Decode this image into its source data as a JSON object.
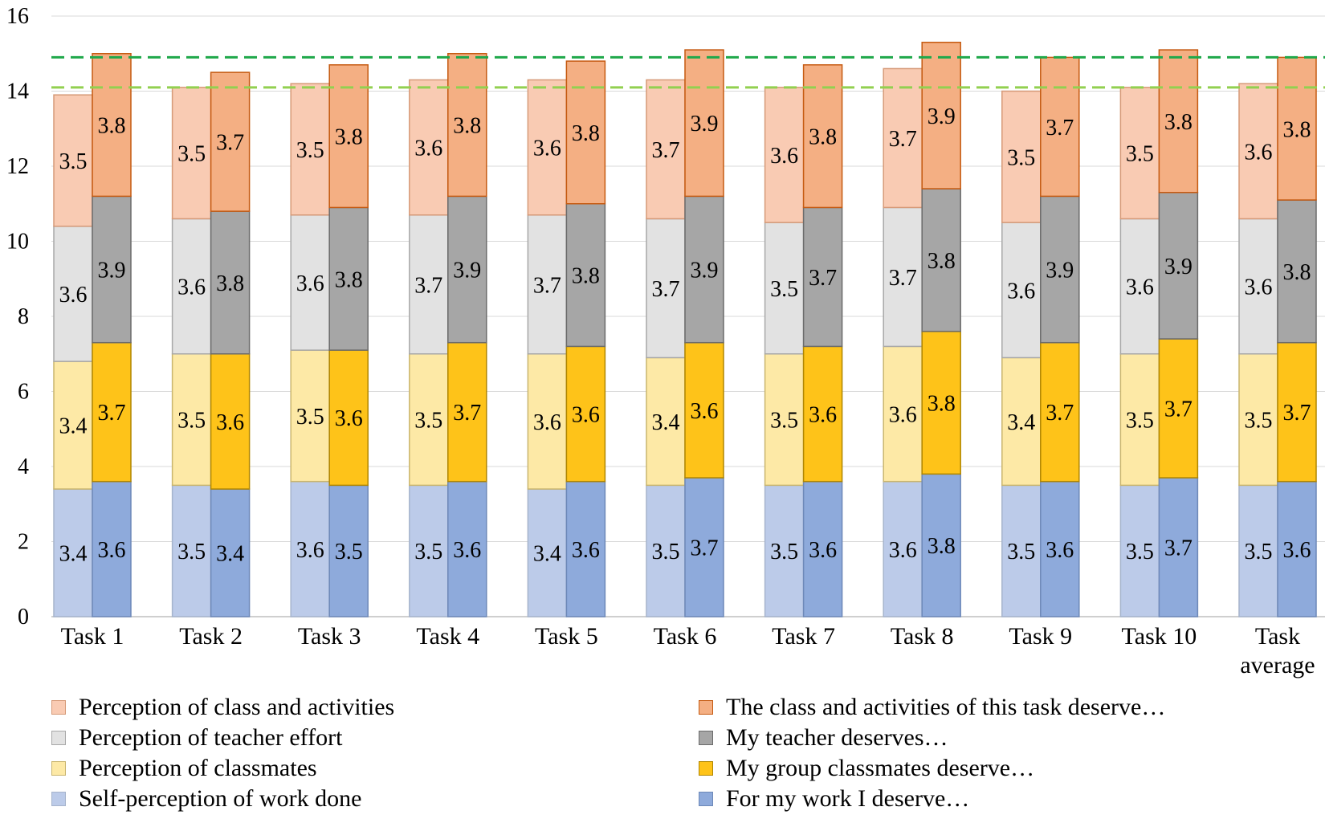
{
  "chart_data": {
    "type": "bar",
    "stacked": true,
    "grouped": true,
    "title": "",
    "xlabel": "",
    "ylabel": "",
    "ylim": [
      0,
      16
    ],
    "yticks": [
      0,
      2,
      4,
      6,
      8,
      10,
      12,
      14,
      16
    ],
    "grid": true,
    "categories": [
      [
        "Task 1"
      ],
      [
        "Task 2"
      ],
      [
        "Task 3"
      ],
      [
        "Task 4"
      ],
      [
        "Task 5"
      ],
      [
        "Task 6"
      ],
      [
        "Task 7"
      ],
      [
        "Task 8"
      ],
      [
        "Task 9"
      ],
      [
        "Task 10"
      ],
      [
        "Task",
        "average"
      ]
    ],
    "groups": [
      {
        "name": "perception",
        "series": [
          {
            "name": "Self-perception of work done",
            "color": "#bccbe9",
            "edge": "#a6b4cc",
            "values": [
              3.4,
              3.5,
              3.6,
              3.5,
              3.4,
              3.5,
              3.5,
              3.6,
              3.5,
              3.5,
              3.5
            ]
          },
          {
            "name": "Perception of classmates",
            "color": "#fde9a6",
            "edge": "#c9b56e",
            "values": [
              3.4,
              3.5,
              3.5,
              3.5,
              3.6,
              3.4,
              3.5,
              3.6,
              3.4,
              3.5,
              3.5
            ]
          },
          {
            "name": "Perception of teacher effort",
            "color": "#e2e2e2",
            "edge": "#a8a8a8",
            "values": [
              3.6,
              3.6,
              3.6,
              3.7,
              3.7,
              3.7,
              3.5,
              3.7,
              3.6,
              3.6,
              3.6
            ]
          },
          {
            "name": "Perception of class and activities",
            "color": "#f9cbb3",
            "edge": "#d69a78",
            "values": [
              3.5,
              3.5,
              3.5,
              3.6,
              3.6,
              3.7,
              3.6,
              3.7,
              3.5,
              3.5,
              3.6
            ]
          }
        ]
      },
      {
        "name": "deserve",
        "series": [
          {
            "name": "For my work I deserve…",
            "color": "#8eaadb",
            "edge": "#6d88b8",
            "values": [
              3.6,
              3.4,
              3.5,
              3.6,
              3.6,
              3.7,
              3.6,
              3.8,
              3.6,
              3.7,
              3.6
            ]
          },
          {
            "name": "My group classmates deserve…",
            "color": "#fec319",
            "edge": "#b08600",
            "values": [
              3.7,
              3.6,
              3.6,
              3.7,
              3.6,
              3.6,
              3.6,
              3.8,
              3.7,
              3.7,
              3.7
            ]
          },
          {
            "name": "My teacher deserves…",
            "color": "#a6a6a6",
            "edge": "#6b6b6b",
            "values": [
              3.9,
              3.8,
              3.8,
              3.9,
              3.8,
              3.9,
              3.7,
              3.8,
              3.9,
              3.9,
              3.8
            ]
          },
          {
            "name": "The class and activities of this task deserve…",
            "color": "#f4af83",
            "edge": "#c55a11",
            "values": [
              3.8,
              3.7,
              3.8,
              3.8,
              3.8,
              3.9,
              3.8,
              3.9,
              3.7,
              3.8,
              3.8
            ]
          }
        ]
      }
    ],
    "reference_lines": [
      {
        "value": 14.9,
        "color": "#1fa84a",
        "style": "dashed"
      },
      {
        "value": 14.1,
        "color": "#92d050",
        "style": "dashed"
      }
    ],
    "legend": {
      "placement": "bottom",
      "left_column": [
        {
          "label": "Perception of class and activities",
          "color": "#f9cbb3",
          "edge": "#d69a78"
        },
        {
          "label": "Perception of teacher effort",
          "color": "#e2e2e2",
          "edge": "#a8a8a8"
        },
        {
          "label": "Perception of classmates",
          "color": "#fde9a6",
          "edge": "#c9b56e"
        },
        {
          "label": "Self-perception of work done",
          "color": "#bccbe9",
          "edge": "#a6b4cc"
        }
      ],
      "right_column": [
        {
          "label": "The class and activities of this task deserve…",
          "color": "#f4af83",
          "edge": "#c55a11"
        },
        {
          "label": "My teacher deserves…",
          "color": "#a6a6a6",
          "edge": "#6b6b6b"
        },
        {
          "label": "My group classmates deserve…",
          "color": "#fec319",
          "edge": "#b08600"
        },
        {
          "label": "For my work I deserve…",
          "color": "#8eaadb",
          "edge": "#6d88b8"
        }
      ]
    }
  }
}
